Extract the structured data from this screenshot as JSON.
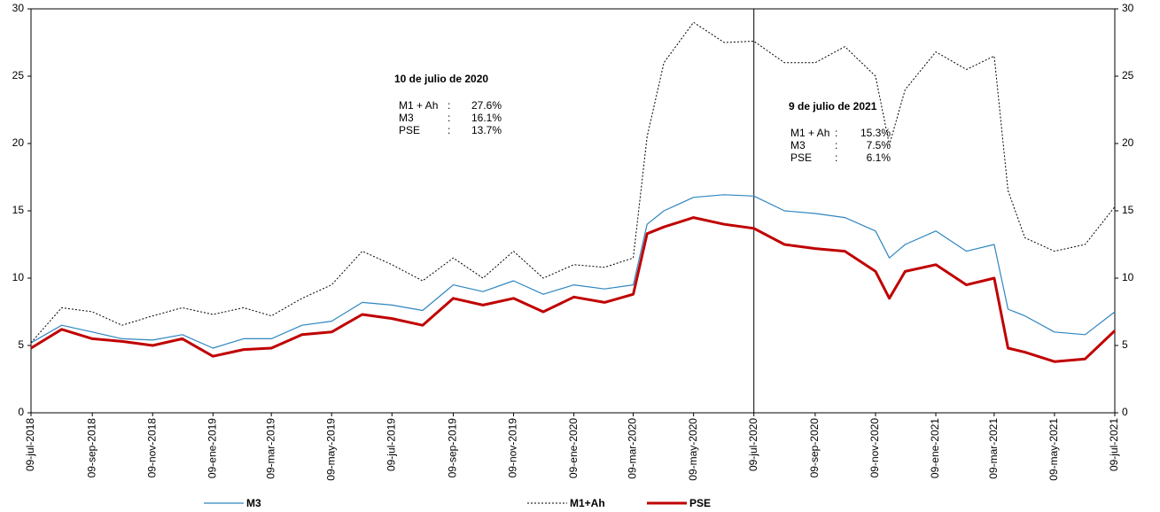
{
  "chart_data": {
    "type": "line",
    "x": [
      "2018-07-09",
      "2018-08-09",
      "2018-09-09",
      "2018-10-09",
      "2018-11-09",
      "2018-12-09",
      "2019-01-09",
      "2019-02-09",
      "2019-03-09",
      "2019-04-09",
      "2019-05-09",
      "2019-06-09",
      "2019-07-09",
      "2019-08-09",
      "2019-09-09",
      "2019-10-09",
      "2019-11-09",
      "2019-12-09",
      "2020-01-09",
      "2020-02-09",
      "2020-03-09",
      "2020-03-23",
      "2020-04-09",
      "2020-05-09",
      "2020-06-09",
      "2020-07-09",
      "2020-08-09",
      "2020-09-09",
      "2020-10-09",
      "2020-11-09",
      "2020-11-23",
      "2020-12-09",
      "2021-01-09",
      "2021-02-09",
      "2021-03-09",
      "2021-03-23",
      "2021-04-09",
      "2021-05-09",
      "2021-06-09",
      "2021-07-09"
    ],
    "series": [
      {
        "name": "M3",
        "color": "#2e86c1",
        "width": 1.2,
        "dash": "none",
        "values": [
          5.2,
          6.5,
          6.0,
          5.5,
          5.4,
          5.8,
          4.8,
          5.5,
          5.5,
          6.5,
          6.8,
          8.2,
          8.0,
          7.6,
          9.5,
          9.0,
          9.8,
          8.8,
          9.5,
          9.2,
          9.5,
          14.0,
          15.0,
          16.0,
          16.2,
          16.1,
          15.0,
          14.8,
          14.5,
          13.5,
          11.5,
          12.5,
          13.5,
          12.0,
          12.5,
          7.7,
          7.2,
          6.0,
          5.8,
          7.5
        ]
      },
      {
        "name": "M1+Ah",
        "color": "#000000",
        "width": 1,
        "dash": "2,2",
        "values": [
          5.2,
          7.8,
          7.5,
          6.5,
          7.2,
          7.8,
          7.3,
          7.8,
          7.2,
          8.5,
          9.5,
          12.0,
          11.0,
          9.8,
          11.5,
          10.0,
          12.0,
          10.0,
          11.0,
          10.8,
          11.5,
          20.5,
          26.0,
          29.0,
          27.5,
          27.6,
          26.0,
          26.0,
          27.2,
          25.0,
          19.9,
          24.0,
          26.8,
          25.5,
          26.5,
          16.5,
          13.0,
          12.0,
          12.5,
          15.3
        ]
      },
      {
        "name": "PSE",
        "color": "#c00000",
        "width": 3,
        "dash": "none",
        "values": [
          4.8,
          6.2,
          5.5,
          5.3,
          5.0,
          5.5,
          4.2,
          4.7,
          4.8,
          5.8,
          6.0,
          7.3,
          7.0,
          6.5,
          8.5,
          8.0,
          8.5,
          7.5,
          8.6,
          8.2,
          8.8,
          13.3,
          13.8,
          14.5,
          14.0,
          13.7,
          12.5,
          12.2,
          12.0,
          10.5,
          8.5,
          10.5,
          11.0,
          9.5,
          10.0,
          4.8,
          4.5,
          3.8,
          4.0,
          6.1
        ]
      }
    ],
    "xlim": [
      "2018-07-09",
      "2021-07-09"
    ],
    "xticks": [
      {
        "value": "2018-07-09",
        "label": "09-jul-2018"
      },
      {
        "value": "2018-09-09",
        "label": "09-sep-2018"
      },
      {
        "value": "2018-11-09",
        "label": "09-nov-2018"
      },
      {
        "value": "2019-01-09",
        "label": "09-ene-2019"
      },
      {
        "value": "2019-03-09",
        "label": "09-mar-2019"
      },
      {
        "value": "2019-05-09",
        "label": "09-may-2019"
      },
      {
        "value": "2019-07-09",
        "label": "09-jul-2019"
      },
      {
        "value": "2019-09-09",
        "label": "09-sep-2019"
      },
      {
        "value": "2019-11-09",
        "label": "09-nov-2019"
      },
      {
        "value": "2020-01-09",
        "label": "09-ene-2020"
      },
      {
        "value": "2020-03-09",
        "label": "09-mar-2020"
      },
      {
        "value": "2020-05-09",
        "label": "09-may-2020"
      },
      {
        "value": "2020-07-09",
        "label": "09-jul-2020"
      },
      {
        "value": "2020-09-09",
        "label": "09-sep-2020"
      },
      {
        "value": "2020-11-09",
        "label": "09-nov-2020"
      },
      {
        "value": "2021-01-09",
        "label": "09-ene-2021"
      },
      {
        "value": "2021-03-09",
        "label": "09-mar-2021"
      },
      {
        "value": "2021-05-09",
        "label": "09-may-2021"
      },
      {
        "value": "2021-07-09",
        "label": "09-jul-2021"
      }
    ],
    "ylim": [
      0,
      30
    ],
    "yticks": [
      0,
      5,
      10,
      15,
      20,
      25,
      30
    ],
    "y2lim": [
      0,
      30
    ],
    "y2ticks": [
      0,
      5,
      10,
      15,
      20,
      25,
      30
    ],
    "vline": "2020-07-09",
    "annotations": [
      {
        "title": "10 de julio de 2020",
        "rows": [
          {
            "label": "M1 + Ah",
            "sep": ":",
            "value": "27.6%"
          },
          {
            "label": "M3",
            "sep": ":",
            "value": "16.1%"
          },
          {
            "label": "PSE",
            "sep": ":",
            "value": "13.7%"
          }
        ]
      },
      {
        "title": "9 de julio de 2021",
        "rows": [
          {
            "label": "M1 + Ah",
            "sep": ":",
            "value": "15.3%"
          },
          {
            "label": "M3",
            "sep": ":",
            "value": "7.5%"
          },
          {
            "label": "PSE",
            "sep": ":",
            "value": "6.1%"
          }
        ]
      }
    ]
  }
}
